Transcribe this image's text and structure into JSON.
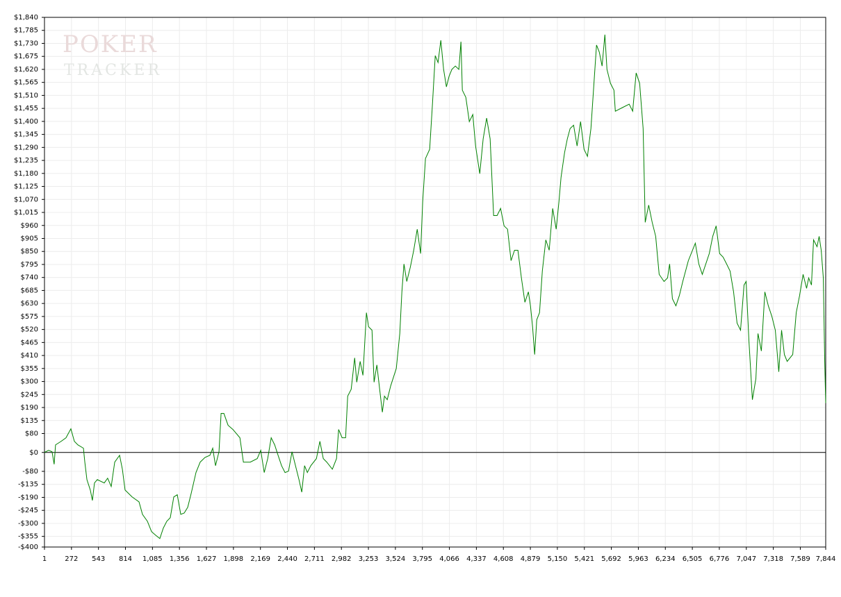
{
  "chart_data": {
    "type": "line",
    "watermark": [
      "POKER",
      "TRACKER"
    ],
    "color": "#008000",
    "grid": true,
    "xlim": [
      1,
      7844
    ],
    "ylim": [
      -400,
      1840
    ],
    "xticks": [
      1,
      272,
      543,
      814,
      {
        "value": 1085,
        "label": "1,085"
      },
      {
        "value": 1356,
        "label": "1,356"
      },
      {
        "value": 1627,
        "label": "1,627"
      },
      {
        "value": 1898,
        "label": "1,898"
      },
      {
        "value": 2169,
        "label": "2,169"
      },
      {
        "value": 2440,
        "label": "2,440"
      },
      {
        "value": 2711,
        "label": "2,711"
      },
      {
        "value": 2982,
        "label": "2,982"
      },
      {
        "value": 3253,
        "label": "3,253"
      },
      {
        "value": 3524,
        "label": "3,524"
      },
      {
        "value": 3795,
        "label": "3,795"
      },
      {
        "value": 4066,
        "label": "4,066"
      },
      {
        "value": 4337,
        "label": "4,337"
      },
      {
        "value": 4608,
        "label": "4,608"
      },
      {
        "value": 4879,
        "label": "4,879"
      },
      {
        "value": 5150,
        "label": "5,150"
      },
      {
        "value": 5421,
        "label": "5,421"
      },
      {
        "value": 5692,
        "label": "5,692"
      },
      {
        "value": 5963,
        "label": "5,963"
      },
      {
        "value": 6234,
        "label": "6,234"
      },
      {
        "value": 6505,
        "label": "6,505"
      },
      {
        "value": 6776,
        "label": "6,776"
      },
      {
        "value": 7047,
        "label": "7,047"
      },
      {
        "value": 7318,
        "label": "7,318"
      },
      {
        "value": 7589,
        "label": "7,589"
      },
      {
        "value": 7844,
        "label": "7,844"
      }
    ],
    "yticks": [
      {
        "value": -400,
        "label": "-$400"
      },
      {
        "value": -355,
        "label": "-$355"
      },
      {
        "value": -300,
        "label": "-$300"
      },
      {
        "value": -245,
        "label": "-$245"
      },
      {
        "value": -190,
        "label": "-$190"
      },
      {
        "value": -135,
        "label": "-$135"
      },
      {
        "value": -80,
        "label": "-$80"
      },
      {
        "value": 0,
        "label": "$0"
      },
      {
        "value": 80,
        "label": "$80"
      },
      {
        "value": 135,
        "label": "$135"
      },
      {
        "value": 190,
        "label": "$190"
      },
      {
        "value": 245,
        "label": "$245"
      },
      {
        "value": 300,
        "label": "$300"
      },
      {
        "value": 355,
        "label": "$355"
      },
      {
        "value": 410,
        "label": "$410"
      },
      {
        "value": 465,
        "label": "$465"
      },
      {
        "value": 520,
        "label": "$520"
      },
      {
        "value": 575,
        "label": "$575"
      },
      {
        "value": 630,
        "label": "$630"
      },
      {
        "value": 685,
        "label": "$685"
      },
      {
        "value": 740,
        "label": "$740"
      },
      {
        "value": 795,
        "label": "$795"
      },
      {
        "value": 850,
        "label": "$850"
      },
      {
        "value": 905,
        "label": "$905"
      },
      {
        "value": 960,
        "label": "$960"
      },
      {
        "value": 1015,
        "label": "$1,015"
      },
      {
        "value": 1070,
        "label": "$1,070"
      },
      {
        "value": 1125,
        "label": "$1,125"
      },
      {
        "value": 1180,
        "label": "$1,180"
      },
      {
        "value": 1235,
        "label": "$1,235"
      },
      {
        "value": 1290,
        "label": "$1,290"
      },
      {
        "value": 1345,
        "label": "$1,345"
      },
      {
        "value": 1400,
        "label": "$1,400"
      },
      {
        "value": 1455,
        "label": "$1,455"
      },
      {
        "value": 1510,
        "label": "$1,510"
      },
      {
        "value": 1565,
        "label": "$1,565"
      },
      {
        "value": 1620,
        "label": "$1,620"
      },
      {
        "value": 1675,
        "label": "$1,675"
      },
      {
        "value": 1730,
        "label": "$1,730"
      },
      {
        "value": 1785,
        "label": "$1,785"
      },
      {
        "value": 1840,
        "label": "$1,840"
      }
    ],
    "x": [
      1,
      42,
      77,
      98,
      112,
      168,
      217,
      266,
      301,
      336,
      392,
      406,
      427,
      461,
      482,
      503,
      531,
      601,
      635,
      671,
      706,
      755,
      783,
      810,
      880,
      950,
      985,
      1034,
      1076,
      1117,
      1159,
      1194,
      1229,
      1264,
      1299,
      1334,
      1369,
      1404,
      1439,
      1474,
      1522,
      1564,
      1613,
      1662,
      1690,
      1718,
      1753,
      1774,
      1802,
      1844,
      1893,
      1963,
      1998,
      2067,
      2137,
      2172,
      2207,
      2242,
      2277,
      2312,
      2346,
      2381,
      2416,
      2451,
      2486,
      2521,
      2556,
      2584,
      2612,
      2640,
      2675,
      2731,
      2766,
      2800,
      2835,
      2891,
      2933,
      2954,
      2989,
      3024,
      3045,
      3080,
      3115,
      3136,
      3170,
      3198,
      3233,
      3254,
      3289,
      3310,
      3338,
      3366,
      3393,
      3414,
      3442,
      3477,
      3533,
      3568,
      3589,
      3610,
      3638,
      3673,
      3708,
      3743,
      3777,
      3798,
      3826,
      3868,
      3896,
      3924,
      3952,
      3980,
      4008,
      4036,
      4063,
      4091,
      4126,
      4161,
      4182,
      4196,
      4231,
      4266,
      4301,
      4329,
      4371,
      4405,
      4440,
      4475,
      4510,
      4545,
      4580,
      4615,
      4650,
      4685,
      4720,
      4754,
      4789,
      4824,
      4859,
      4880,
      4901,
      4922,
      4943,
      4971,
      4999,
      5034,
      5068,
      5103,
      5138,
      5166,
      5187,
      5222,
      5250,
      5278,
      5313,
      5348,
      5383,
      5418,
      5452,
      5487,
      5522,
      5543,
      5571,
      5599,
      5627,
      5648,
      5683,
      5718,
      5732,
      5801,
      5871,
      5906,
      5941,
      5976,
      6011,
      6032,
      6067,
      6102,
      6137,
      6172,
      6221,
      6256,
      6277,
      6305,
      6340,
      6375,
      6409,
      6465,
      6535,
      6570,
      6605,
      6675,
      6710,
      6744,
      6779,
      6814,
      6849,
      6884,
      6919,
      6954,
      6989,
      7024,
      7045,
      7073,
      7108,
      7143,
      7164,
      7198,
      7233,
      7268,
      7303,
      7338,
      7373,
      7401,
      7429,
      7457,
      7513,
      7548,
      7582,
      7617,
      7652,
      7673,
      7701,
      7722,
      7757,
      7778,
      7799,
      7820,
      7834,
      7844
    ],
    "values": [
      0,
      9,
      3,
      -50,
      32,
      47,
      62,
      100,
      47,
      32,
      18,
      -41,
      -115,
      -159,
      -203,
      -129,
      -115,
      -129,
      -109,
      -144,
      -41,
      -12,
      -71,
      -159,
      -188,
      -209,
      -262,
      -291,
      -335,
      -350,
      -364,
      -320,
      -291,
      -276,
      -188,
      -179,
      -262,
      -256,
      -232,
      -173,
      -85,
      -41,
      -21,
      -12,
      18,
      -56,
      3,
      165,
      165,
      115,
      97,
      62,
      -41,
      -41,
      -26,
      9,
      -85,
      -26,
      62,
      32,
      -12,
      -56,
      -85,
      -79,
      3,
      -56,
      -115,
      -168,
      -56,
      -85,
      -56,
      -26,
      47,
      -26,
      -41,
      -71,
      -26,
      97,
      62,
      62,
      238,
      267,
      400,
      297,
      385,
      326,
      591,
      532,
      517,
      297,
      370,
      267,
      170,
      238,
      223,
      282,
      355,
      503,
      679,
      797,
      723,
      782,
      855,
      944,
      841,
      1061,
      1243,
      1282,
      1473,
      1678,
      1649,
      1743,
      1620,
      1546,
      1591,
      1620,
      1634,
      1620,
      1737,
      1532,
      1502,
      1399,
      1429,
      1296,
      1179,
      1326,
      1414,
      1326,
      1002,
      1002,
      1032,
      958,
      944,
      811,
      855,
      855,
      738,
      635,
      679,
      620,
      532,
      414,
      561,
      591,
      767,
      899,
      855,
      1032,
      944,
      1061,
      1164,
      1267,
      1326,
      1370,
      1384,
      1296,
      1399,
      1282,
      1252,
      1370,
      1591,
      1723,
      1693,
      1634,
      1767,
      1620,
      1561,
      1532,
      1443,
      1458,
      1473,
      1443,
      1605,
      1561,
      1370,
      973,
      1046,
      973,
      914,
      753,
      723,
      738,
      797,
      650,
      620,
      664,
      723,
      811,
      885,
      797,
      753,
      841,
      914,
      958,
      841,
      826,
      797,
      767,
      679,
      547,
      517,
      708,
      723,
      473,
      223,
      312,
      503,
      429,
      679,
      620,
      576,
      517,
      341,
      517,
      414,
      385,
      414,
      591,
      664,
      753,
      694,
      738,
      708,
      899,
      870,
      914,
      855,
      738,
      385,
      209
    ]
  }
}
